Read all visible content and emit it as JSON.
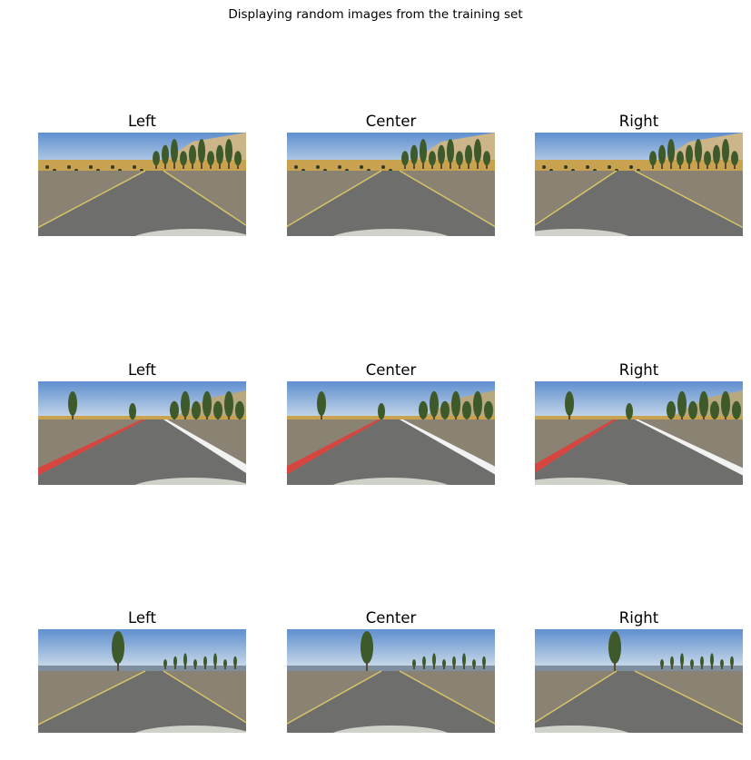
{
  "figure": {
    "suptitle": "Displaying random images from the training set"
  },
  "rows": [
    {
      "scene": "desert-road-gray-edges",
      "panels": [
        {
          "title": "Left",
          "camera": "left"
        },
        {
          "title": "Center",
          "camera": "center"
        },
        {
          "title": "Right",
          "camera": "right"
        }
      ]
    },
    {
      "scene": "curve-red-white-curbs",
      "panels": [
        {
          "title": "Left",
          "camera": "left"
        },
        {
          "title": "Center",
          "camera": "center"
        },
        {
          "title": "Right",
          "camera": "right"
        }
      ]
    },
    {
      "scene": "lake-road-tree",
      "panels": [
        {
          "title": "Left",
          "camera": "left"
        },
        {
          "title": "Center",
          "camera": "center"
        },
        {
          "title": "Right",
          "camera": "right"
        }
      ]
    }
  ],
  "colors": {
    "sky": "#8fb3d9",
    "sky_top": "#5f8fcf",
    "sand": "#c9a24f",
    "road": "#6e6f6c",
    "road_edge": "#d7c46a",
    "curb_red": "#d6453f",
    "curb_white": "#f2f2f2",
    "tree": "#3f5a2a",
    "hood": "#cfd2c9",
    "water": "#7d8f9f"
  }
}
